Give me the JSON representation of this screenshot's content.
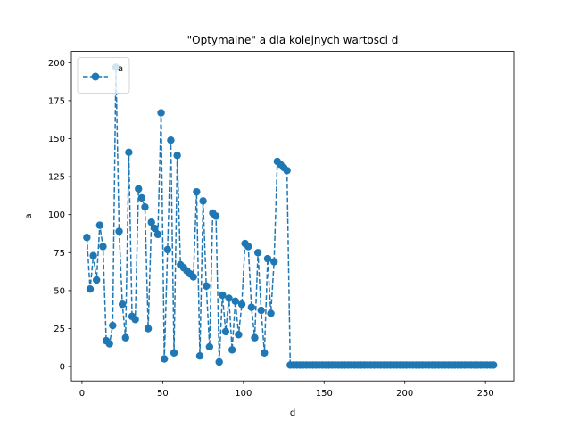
{
  "chart_data": {
    "type": "line",
    "title": "\"Optymalne\" a dla kolejnych wartosci d",
    "xlabel": "d",
    "ylabel": "a",
    "xlim": [
      -6.6,
      267.6
    ],
    "ylim": [
      -9.45,
      207.45
    ],
    "xticks": [
      0,
      50,
      100,
      150,
      200,
      250
    ],
    "yticks": [
      0,
      25,
      50,
      75,
      100,
      125,
      150,
      175,
      200
    ],
    "grid": false,
    "legend": {
      "placement": "upper-left",
      "entries": [
        "a"
      ]
    },
    "series": [
      {
        "name": "a",
        "color": "#1f77b4",
        "linestyle": "dashed",
        "marker": "circle",
        "x": [
          3,
          5,
          7,
          9,
          11,
          13,
          15,
          17,
          19,
          21,
          23,
          25,
          27,
          29,
          31,
          33,
          35,
          37,
          39,
          41,
          43,
          45,
          47,
          49,
          51,
          53,
          55,
          57,
          59,
          61,
          63,
          65,
          67,
          69,
          71,
          73,
          75,
          77,
          79,
          81,
          83,
          85,
          87,
          89,
          91,
          93,
          95,
          97,
          99,
          101,
          103,
          105,
          107,
          109,
          111,
          113,
          115,
          117,
          119,
          121,
          123,
          125,
          127,
          129,
          131,
          133,
          135,
          137,
          139,
          141,
          143,
          145,
          147,
          149,
          151,
          153,
          155,
          157,
          159,
          161,
          163,
          165,
          167,
          169,
          171,
          173,
          175,
          177,
          179,
          181,
          183,
          185,
          187,
          189,
          191,
          193,
          195,
          197,
          199,
          201,
          203,
          205,
          207,
          209,
          211,
          213,
          215,
          217,
          219,
          221,
          223,
          225,
          227,
          229,
          231,
          233,
          235,
          237,
          239,
          241,
          243,
          245,
          247,
          249,
          251,
          253,
          255
        ],
        "y": [
          85,
          51,
          73,
          57,
          93,
          79,
          17,
          15,
          27,
          197,
          89,
          41,
          19,
          141,
          33,
          31,
          117,
          111,
          105,
          25,
          95,
          91,
          87,
          167,
          5,
          77,
          149,
          9,
          139,
          67,
          65,
          63,
          61,
          59,
          115,
          7,
          109,
          53,
          13,
          101,
          99,
          3,
          47,
          23,
          45,
          11,
          43,
          21,
          41,
          81,
          79,
          39,
          19,
          75,
          37,
          9,
          71,
          35,
          69,
          135,
          133,
          131,
          129,
          1,
          1,
          1,
          1,
          1,
          1,
          1,
          1,
          1,
          1,
          1,
          1,
          1,
          1,
          1,
          1,
          1,
          1,
          1,
          1,
          1,
          1,
          1,
          1,
          1,
          1,
          1,
          1,
          1,
          1,
          1,
          1,
          1,
          1,
          1,
          1,
          1,
          1,
          1,
          1,
          1,
          1,
          1,
          1,
          1,
          1,
          1,
          1,
          1,
          1,
          1,
          1,
          1,
          1,
          1,
          1,
          1,
          1,
          1,
          1,
          1,
          1,
          1,
          1
        ]
      }
    ]
  }
}
